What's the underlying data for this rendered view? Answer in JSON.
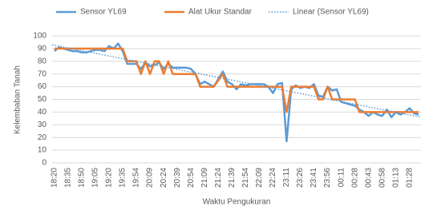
{
  "chart_data": {
    "type": "line",
    "x_label": "Waktu Pengukuran",
    "y_label": "Kelembaban Tanah",
    "categories": [
      "18:20",
      null,
      null,
      "18:35",
      null,
      null,
      "18:50",
      null,
      null,
      "19:05",
      null,
      null,
      "19:20",
      null,
      null,
      "19:35",
      null,
      null,
      "19:54",
      null,
      null,
      "20:09",
      null,
      null,
      "20:24",
      null,
      null,
      "20:39",
      null,
      null,
      "20:54",
      null,
      null,
      "21:09",
      null,
      null,
      "21:24",
      null,
      null,
      "21:39",
      null,
      null,
      "21:54",
      null,
      null,
      "22:09",
      null,
      null,
      "22:24",
      null,
      null,
      "23:11",
      null,
      null,
      "23:26",
      null,
      null,
      "23:41",
      null,
      null,
      "23:56",
      null,
      null,
      "00:11",
      null,
      null,
      "00:28",
      null,
      null,
      "00:43",
      null,
      null,
      "00:58",
      null,
      null,
      "01:13",
      null,
      null,
      "01:28",
      null,
      null
    ],
    "series": [
      {
        "name": "Sensor YL69",
        "color": "#5b9bd5",
        "values": [
          88,
          91,
          90,
          89,
          88,
          88,
          87,
          87,
          88,
          89,
          89,
          88,
          92,
          90,
          94,
          88,
          78,
          78,
          78,
          74,
          79,
          76,
          77,
          79,
          74,
          78,
          75,
          75,
          75,
          75,
          74,
          70,
          62,
          64,
          62,
          60,
          66,
          72,
          64,
          62,
          58,
          62,
          61,
          62,
          62,
          62,
          62,
          60,
          55,
          62,
          63,
          17,
          58,
          61,
          59,
          60,
          59,
          62,
          53,
          52,
          60,
          57,
          58,
          48,
          47,
          46,
          45,
          42,
          40,
          37,
          40,
          38,
          37,
          42,
          36,
          40,
          38,
          40,
          43,
          39,
          38
        ]
      },
      {
        "name": "Alat Ukur Standar",
        "color": "#ed7d31",
        "values": [
          90,
          90,
          90,
          90,
          90,
          90,
          90,
          90,
          90,
          90,
          90,
          90,
          90,
          90,
          90,
          90,
          80,
          80,
          80,
          70,
          80,
          70,
          80,
          80,
          70,
          80,
          70,
          70,
          70,
          70,
          70,
          70,
          60,
          60,
          60,
          60,
          65,
          70,
          60,
          60,
          60,
          60,
          60,
          60,
          60,
          60,
          60,
          60,
          60,
          60,
          60,
          40,
          60,
          60,
          60,
          60,
          60,
          60,
          50,
          50,
          60,
          50,
          50,
          50,
          50,
          50,
          50,
          40,
          40,
          40,
          40,
          40,
          40,
          40,
          40,
          40,
          40,
          40,
          40,
          40,
          40
        ]
      }
    ],
    "trendline": {
      "name": "Linear (Sensor YL69)",
      "color": "#5b9bd5",
      "values": [
        93,
        36
      ]
    },
    "ylim": [
      0,
      100
    ],
    "yticks": [
      0,
      10,
      20,
      30,
      40,
      50,
      60,
      70,
      80,
      90,
      100
    ],
    "grid": true
  }
}
